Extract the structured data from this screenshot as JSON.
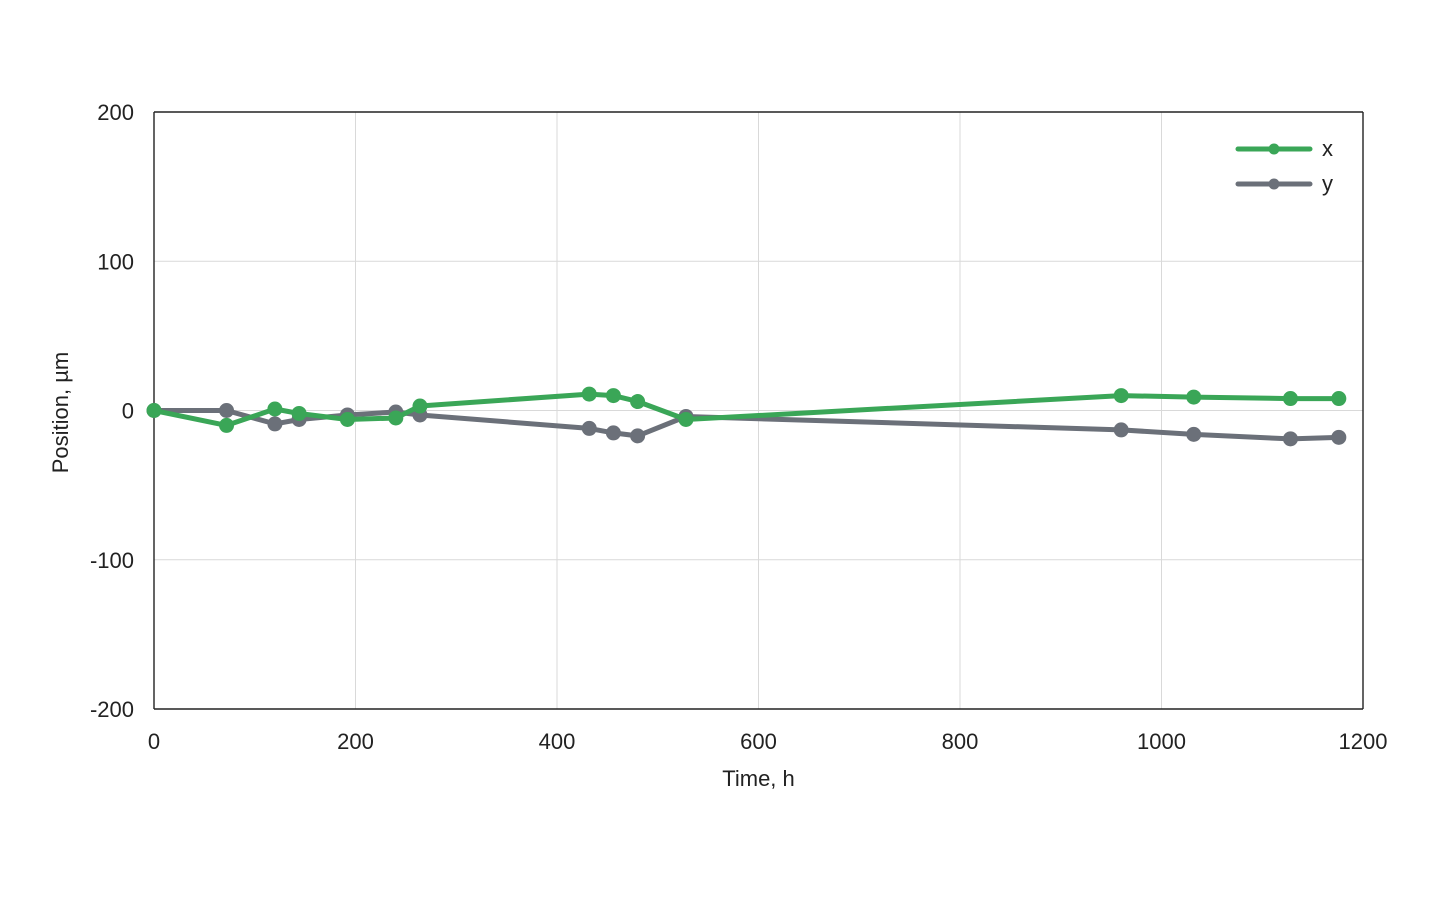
{
  "chart_data": {
    "type": "line",
    "title": "",
    "xlabel": "Time, h",
    "ylabel": "Position, µm",
    "xlim": [
      0,
      1200
    ],
    "ylim": [
      -200,
      200
    ],
    "xticks": [
      0,
      200,
      400,
      600,
      800,
      1000,
      1200
    ],
    "yticks": [
      -200,
      -100,
      0,
      100,
      200
    ],
    "xtick_labels": [
      "0",
      "200",
      "400",
      "600",
      "800",
      "1000",
      "1200"
    ],
    "ytick_labels": [
      "-200",
      "-100",
      "0",
      "100",
      "200"
    ],
    "grid": true,
    "legend_position": "top-right",
    "series": [
      {
        "name": "x",
        "color": "#3aa657",
        "x": [
          0,
          72,
          120,
          144,
          192,
          240,
          264,
          432,
          456,
          480,
          528,
          960,
          1032,
          1128,
          1176
        ],
        "y": [
          0,
          -10,
          1,
          -2,
          -6,
          -5,
          3,
          11,
          10,
          6,
          -6,
          10,
          9,
          8,
          8
        ]
      },
      {
        "name": "y",
        "color": "#6b7079",
        "x": [
          0,
          72,
          120,
          144,
          192,
          240,
          264,
          432,
          456,
          480,
          528,
          960,
          1032,
          1128,
          1176
        ],
        "y": [
          0,
          0,
          -9,
          -6,
          -3,
          -1,
          -3,
          -12,
          -15,
          -17,
          -4,
          -13,
          -16,
          -19,
          -18
        ]
      }
    ]
  }
}
